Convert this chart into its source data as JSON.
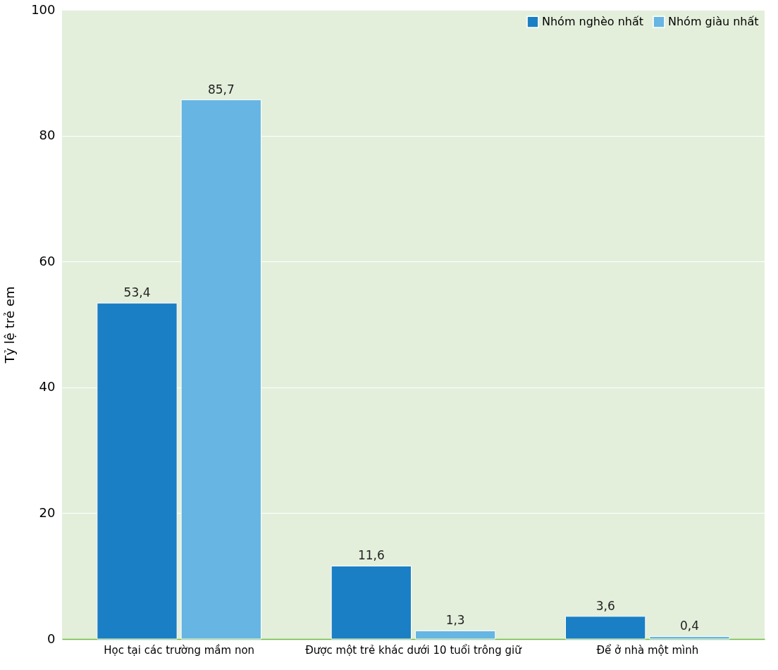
{
  "chart_data": {
    "type": "bar",
    "ylabel": "Tỷ lệ trẻ em",
    "categories": [
      "Học tại các trường mầm non",
      "Được một trẻ khác dưới 10 tuổi trông giữ",
      "Để ở nhà một mình"
    ],
    "series": [
      {
        "name": "Nhóm nghèo nhất",
        "color": "#1a7fc4",
        "values": [
          53.4,
          11.6,
          3.6
        ],
        "value_labels": [
          "53,4",
          "11,6",
          "3,6"
        ]
      },
      {
        "name": "Nhóm giàu nhất",
        "color": "#66b5e3",
        "values": [
          85.7,
          1.3,
          0.4
        ],
        "value_labels": [
          "85,7",
          "1,3",
          "0,4"
        ]
      }
    ],
    "ylim": [
      0,
      100
    ],
    "yticks": [
      0,
      20,
      40,
      60,
      80,
      100
    ],
    "grid": "y",
    "legend": "top right"
  }
}
